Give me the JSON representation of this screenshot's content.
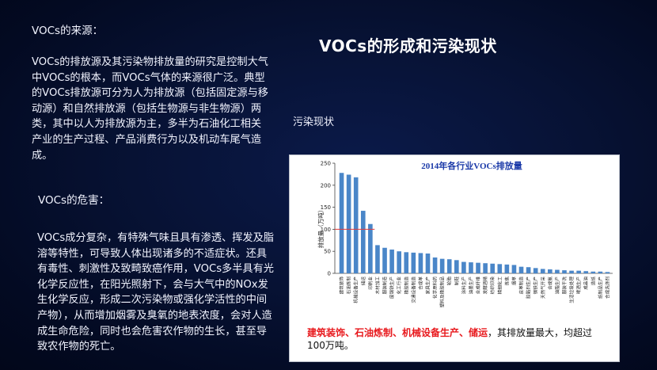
{
  "slide": {
    "title": "VOCs的形成和污染现状",
    "sub_heading": "污染现状"
  },
  "sources": {
    "heading": "VOCs的来源：",
    "body": "VOCs的排放源及其污染物排放量的研究是控制大气中VOCs的根本，而VOCs气体的来源很广泛。典型的VOCs排放源可分为人为排放源（包括固定源与移动源）和自然排放源（包括生物源与非生物源）两类，其中以人为排放源为主，多半为石油化工相关产业的生产过程、产品消费行为以及机动车尾气造成。"
  },
  "hazards": {
    "heading": "VOCs的危害：",
    "body": "VOCs成分复杂，有特殊气味且具有渗透、挥发及脂溶等特性，可导致人体出现诸多的不适症状。还具有毒性、刺激性及致畸致癌作用，VOCs多半具有光化学反应性，在阳光照射下，会与大气中的NOx发生化学反应，形成二次污染物或强化学活性的中间产物），从而增加烟雾及臭氧的地表浓度，会对人造成生命危险，同时也会危害农作物的生长，甚至导致农作物的死亡。"
  },
  "caption": {
    "highlight": "建筑装饰、石油炼制、机械设备生产、储运",
    "rest": "，其排放量最大，均超过100万吨。"
  },
  "colors": {
    "bar": "#4a86c8",
    "reference_line": "#e23a3a",
    "title": "#1a39a8",
    "highlight": "#e8191d"
  },
  "chart_data": {
    "type": "bar",
    "title": "2014年各行业VOCs排放量",
    "ylabel": "排放量（万吨）",
    "xlabel": "",
    "ylim": [
      0,
      250
    ],
    "yticks": [
      0,
      50,
      100,
      150,
      200,
      250
    ],
    "reference_line": 100,
    "grid": false,
    "categories": [
      "建筑装饰",
      "石油炼制",
      "机械设备生产",
      "储运",
      "印刷业",
      "木材加工",
      "服装制造",
      "废钢铁生产",
      "化工行业",
      "橡胶制造",
      "交通设备制造",
      "合成革",
      "家具生产",
      "化学原料药",
      "塑料及橡胶制品",
      "轮胎",
      "制鞋",
      "涂料生产",
      "油墨生产",
      "合成纤维",
      "发酵酒精",
      "纺织印染",
      "精细化工",
      "炼焦",
      "烟草",
      "皮革制造",
      "胶黏剂生产",
      "钢铁生产",
      "天然气开采",
      "合成氨",
      "油脂生产",
      "服装干洗",
      "生活垃圾处理",
      "啤酒生产",
      "成品油",
      "造纸",
      "纸制品生产",
      "合成洗涤剂"
    ],
    "values": [
      228,
      224,
      218,
      142,
      112,
      64,
      58,
      54,
      50,
      48,
      47,
      46,
      45,
      36,
      33,
      32,
      30,
      26,
      25,
      24,
      23,
      22,
      21,
      20,
      19,
      15,
      14,
      12,
      10,
      9,
      8,
      7,
      6,
      6,
      5,
      4,
      4,
      3
    ]
  }
}
